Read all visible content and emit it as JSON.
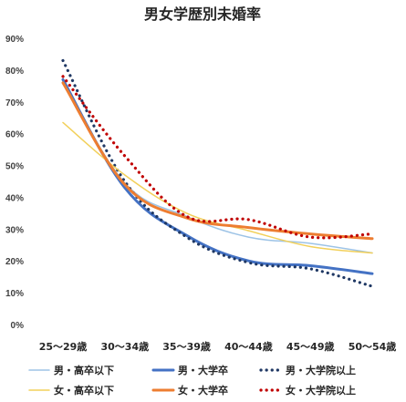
{
  "chart_data": {
    "type": "line",
    "title": "男女学歴別未婚率",
    "xlabel": "",
    "ylabel": "",
    "categories": [
      "25〜29歳",
      "30〜34歳",
      "35〜39歳",
      "40〜44歳",
      "45〜49歳",
      "50〜54歳"
    ],
    "ylim": [
      0,
      90
    ],
    "yticks": [
      "0%",
      "10%",
      "20%",
      "30%",
      "40%",
      "50%",
      "60%",
      "70%",
      "80%",
      "90%"
    ],
    "grid": false,
    "legend_position": "bottom",
    "series": [
      {
        "name": "男・高卒以下",
        "color": "#9dc3e6",
        "style": "solid",
        "width": 1.5,
        "values": [
          76.5,
          44.5,
          34.0,
          27.5,
          25.5,
          22.5
        ]
      },
      {
        "name": "男・大学卒",
        "color": "#4472c4",
        "style": "solid",
        "width": 3,
        "values": [
          77.0,
          43.0,
          28.0,
          20.0,
          18.5,
          16.0
        ]
      },
      {
        "name": "男・大学院以上",
        "color": "#1f3864",
        "style": "dotted",
        "width": 3,
        "values": [
          83.0,
          45.0,
          27.5,
          19.5,
          17.5,
          12.0
        ]
      },
      {
        "name": "女・高卒以下",
        "color": "#f2d05a",
        "style": "solid",
        "width": 1.5,
        "values": [
          63.5,
          47.0,
          35.0,
          29.5,
          24.5,
          22.5
        ]
      },
      {
        "name": "女・大学卒",
        "color": "#ed7d31",
        "style": "solid",
        "width": 3,
        "values": [
          76.0,
          44.0,
          33.5,
          30.5,
          28.5,
          27.0
        ]
      },
      {
        "name": "女・大学院以上",
        "color": "#c00000",
        "style": "dotted",
        "width": 3,
        "values": [
          78.0,
          53.0,
          34.0,
          33.0,
          27.5,
          28.5
        ]
      }
    ]
  }
}
